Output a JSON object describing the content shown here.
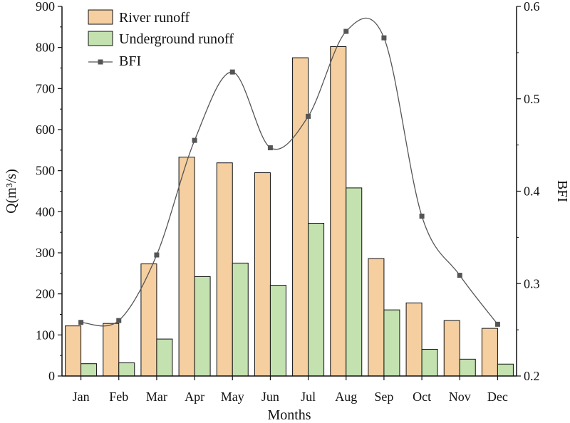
{
  "chart_data": {
    "type": "bar",
    "categories": [
      "Jan",
      "Feb",
      "Mar",
      "Apr",
      "May",
      "Jun",
      "Jul",
      "Aug",
      "Sep",
      "Oct",
      "Nov",
      "Dec"
    ],
    "series": [
      {
        "name": "River runoff",
        "kind": "bar",
        "axis": "left",
        "color": "#F5CFA0",
        "values": [
          122,
          128,
          273,
          533,
          519,
          495,
          775,
          802,
          286,
          178,
          135,
          116
        ]
      },
      {
        "name": "Underground runoff",
        "kind": "bar",
        "axis": "left",
        "color": "#C3E2AF",
        "values": [
          30,
          32,
          90,
          242,
          275,
          221,
          372,
          458,
          161,
          65,
          41,
          29
        ]
      },
      {
        "name": "BFI",
        "kind": "line",
        "axis": "right",
        "color": "#555555",
        "marker": "square",
        "values": [
          0.258,
          0.26,
          0.331,
          0.455,
          0.529,
          0.447,
          0.481,
          0.573,
          0.566,
          0.373,
          0.309,
          0.256
        ]
      }
    ],
    "xlabel": "Months",
    "ylabel": "Q(m³/s)",
    "y2label": "BFI",
    "ylim": [
      0,
      900
    ],
    "y2lim": [
      0.2,
      0.6
    ],
    "yticks": [
      0,
      100,
      200,
      300,
      400,
      500,
      600,
      700,
      800,
      900
    ],
    "y2ticks": [
      0.2,
      0.3,
      0.4,
      0.5,
      0.6
    ],
    "grid": false,
    "legend": "top-left",
    "bar_edge_color": "#111111"
  }
}
